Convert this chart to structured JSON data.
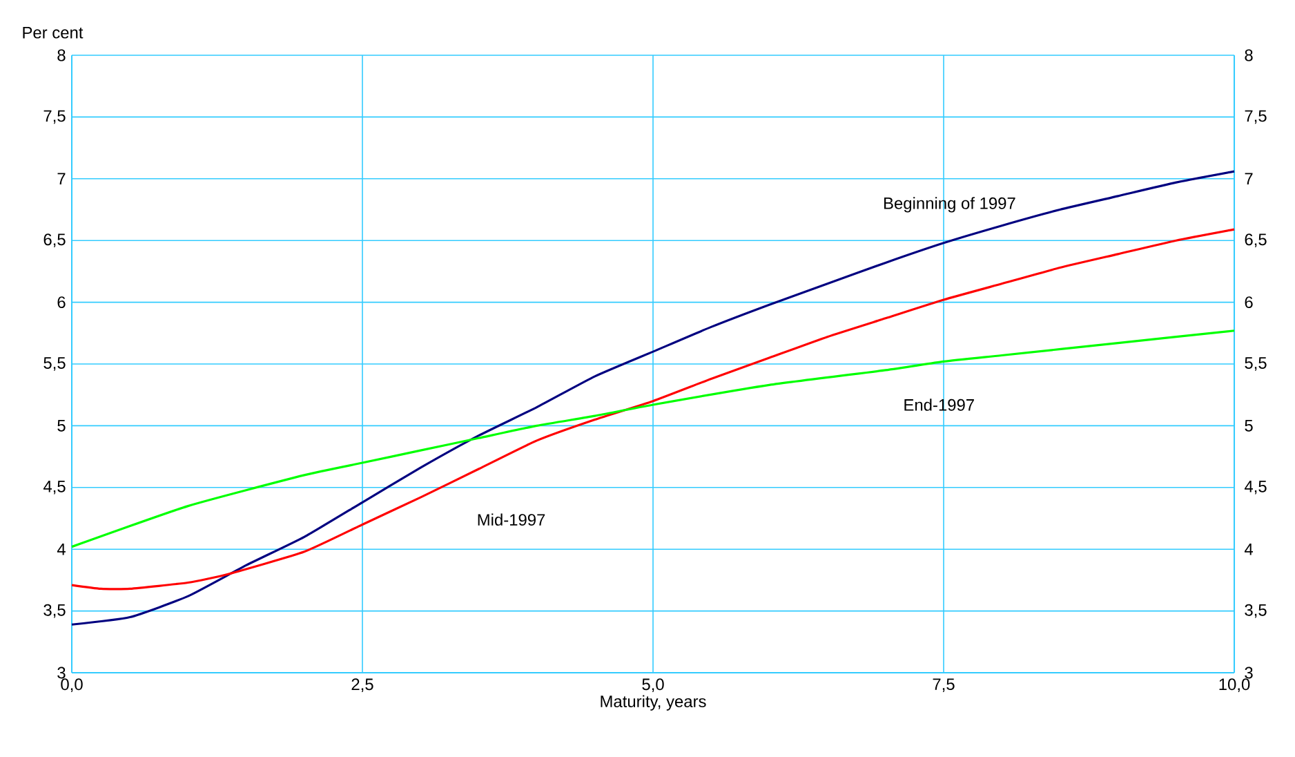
{
  "chart_data": {
    "type": "line",
    "xlabel": "Maturity, years",
    "ylabel": "Per cent",
    "xlim": [
      0,
      10
    ],
    "ylim": [
      3,
      8
    ],
    "y2lim": [
      3,
      8
    ],
    "xticks": [
      {
        "value": 0,
        "label": "0,0"
      },
      {
        "value": 2.5,
        "label": "2,5"
      },
      {
        "value": 5,
        "label": "5,0"
      },
      {
        "value": 7.5,
        "label": "7,5"
      },
      {
        "value": 10,
        "label": "10,0"
      }
    ],
    "yticks": [
      3,
      {
        "value": 3.5,
        "label": "3,5"
      },
      4,
      {
        "value": 4.5,
        "label": "4,5"
      },
      5,
      {
        "value": 5.5,
        "label": "5,5"
      },
      6,
      {
        "value": 6.5,
        "label": "6,5"
      },
      7,
      {
        "value": 7.5,
        "label": "7,5"
      },
      8
    ],
    "y2ticks": [
      3,
      {
        "value": 3.5,
        "label": "3,5"
      },
      4,
      {
        "value": 4.5,
        "label": "4,5"
      },
      5,
      {
        "value": 5.5,
        "label": "5,5"
      },
      6,
      {
        "value": 6.5,
        "label": "6,5"
      },
      7,
      {
        "value": 7.5,
        "label": "7,5"
      },
      8
    ],
    "grid": true,
    "marker": "none",
    "line_style": "solid",
    "series": [
      {
        "name": "Beginning of 1997",
        "color": "#000080",
        "x": [
          0,
          0.5,
          1,
          1.5,
          2,
          2.5,
          3,
          3.5,
          4,
          4.5,
          5,
          5.5,
          6,
          6.5,
          7,
          7.5,
          8,
          8.5,
          9,
          9.5,
          10
        ],
        "values": [
          3.39,
          3.45,
          3.62,
          3.87,
          4.1,
          4.38,
          4.66,
          4.92,
          5.15,
          5.4,
          5.6,
          5.8,
          5.98,
          6.15,
          6.32,
          6.48,
          6.62,
          6.75,
          6.86,
          6.97,
          7.06
        ]
      },
      {
        "name": "Mid-1997",
        "color": "#ff0000",
        "x": [
          0,
          0.25,
          0.5,
          1,
          1.35,
          2,
          2.5,
          3,
          3.5,
          4,
          4.5,
          5,
          5.5,
          6,
          6.5,
          7,
          7.5,
          8,
          8.5,
          9,
          9.5,
          10
        ],
        "values": [
          3.71,
          3.68,
          3.68,
          3.73,
          3.8,
          3.98,
          4.2,
          4.42,
          4.65,
          4.88,
          5.05,
          5.2,
          5.38,
          5.55,
          5.72,
          5.87,
          6.02,
          6.15,
          6.28,
          6.39,
          6.5,
          6.59
        ]
      },
      {
        "name": "End-1997",
        "color": "#00ff00",
        "x": [
          0,
          1,
          2,
          2.5,
          3,
          3.5,
          4,
          4.5,
          5,
          6,
          7,
          7.5,
          8,
          9,
          10
        ],
        "values": [
          4.02,
          4.35,
          4.6,
          4.7,
          4.8,
          4.9,
          5.0,
          5.08,
          5.17,
          5.33,
          5.45,
          5.52,
          5.57,
          5.67,
          5.77
        ]
      }
    ]
  }
}
